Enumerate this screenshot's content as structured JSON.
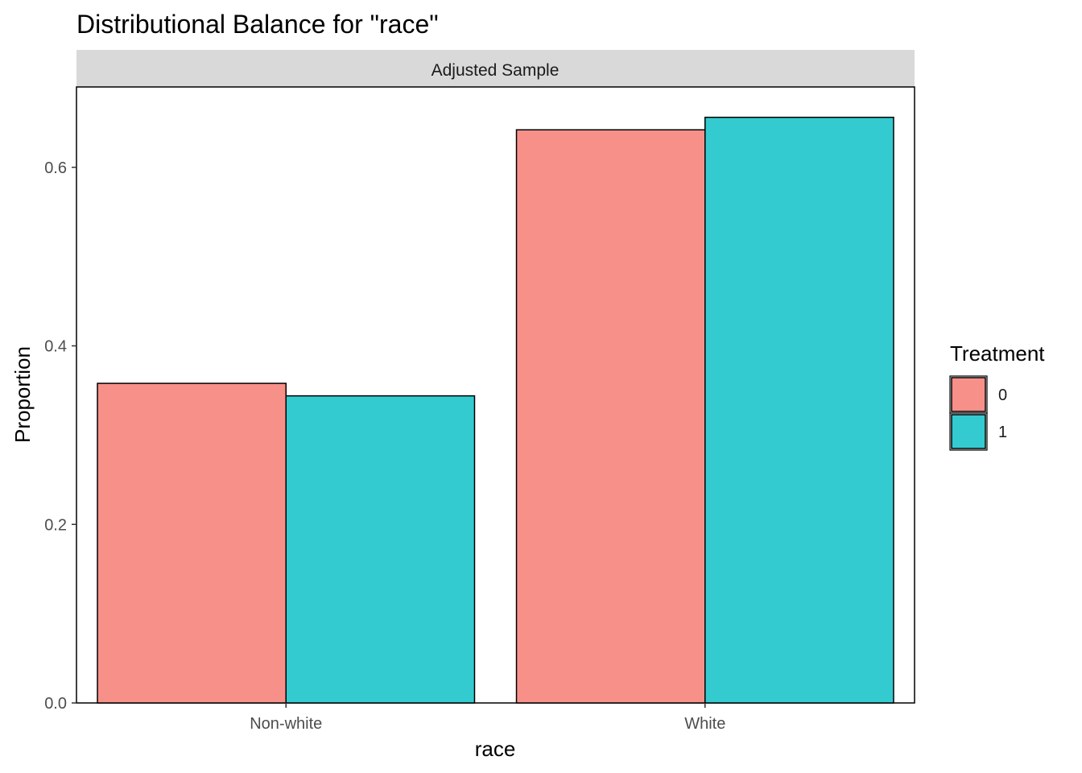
{
  "chart_data": {
    "type": "bar",
    "title": "Distributional Balance for \"race\"",
    "facet_label": "Adjusted Sample",
    "xlabel": "race",
    "ylabel": "Proportion",
    "categories": [
      "Non-white",
      "White"
    ],
    "series": [
      {
        "name": "0",
        "color": "#F8908A",
        "values": [
          0.358,
          0.642
        ]
      },
      {
        "name": "1",
        "color": "#33CBD0",
        "values": [
          0.344,
          0.656
        ]
      }
    ],
    "ylim": [
      0,
      0.69
    ],
    "yticks": [
      0.0,
      0.2,
      0.4,
      0.6
    ],
    "ytick_labels": [
      "0.0",
      "0.2",
      "0.4",
      "0.6"
    ],
    "legend": {
      "title": "Treatment",
      "position": "right"
    },
    "grid": false
  }
}
